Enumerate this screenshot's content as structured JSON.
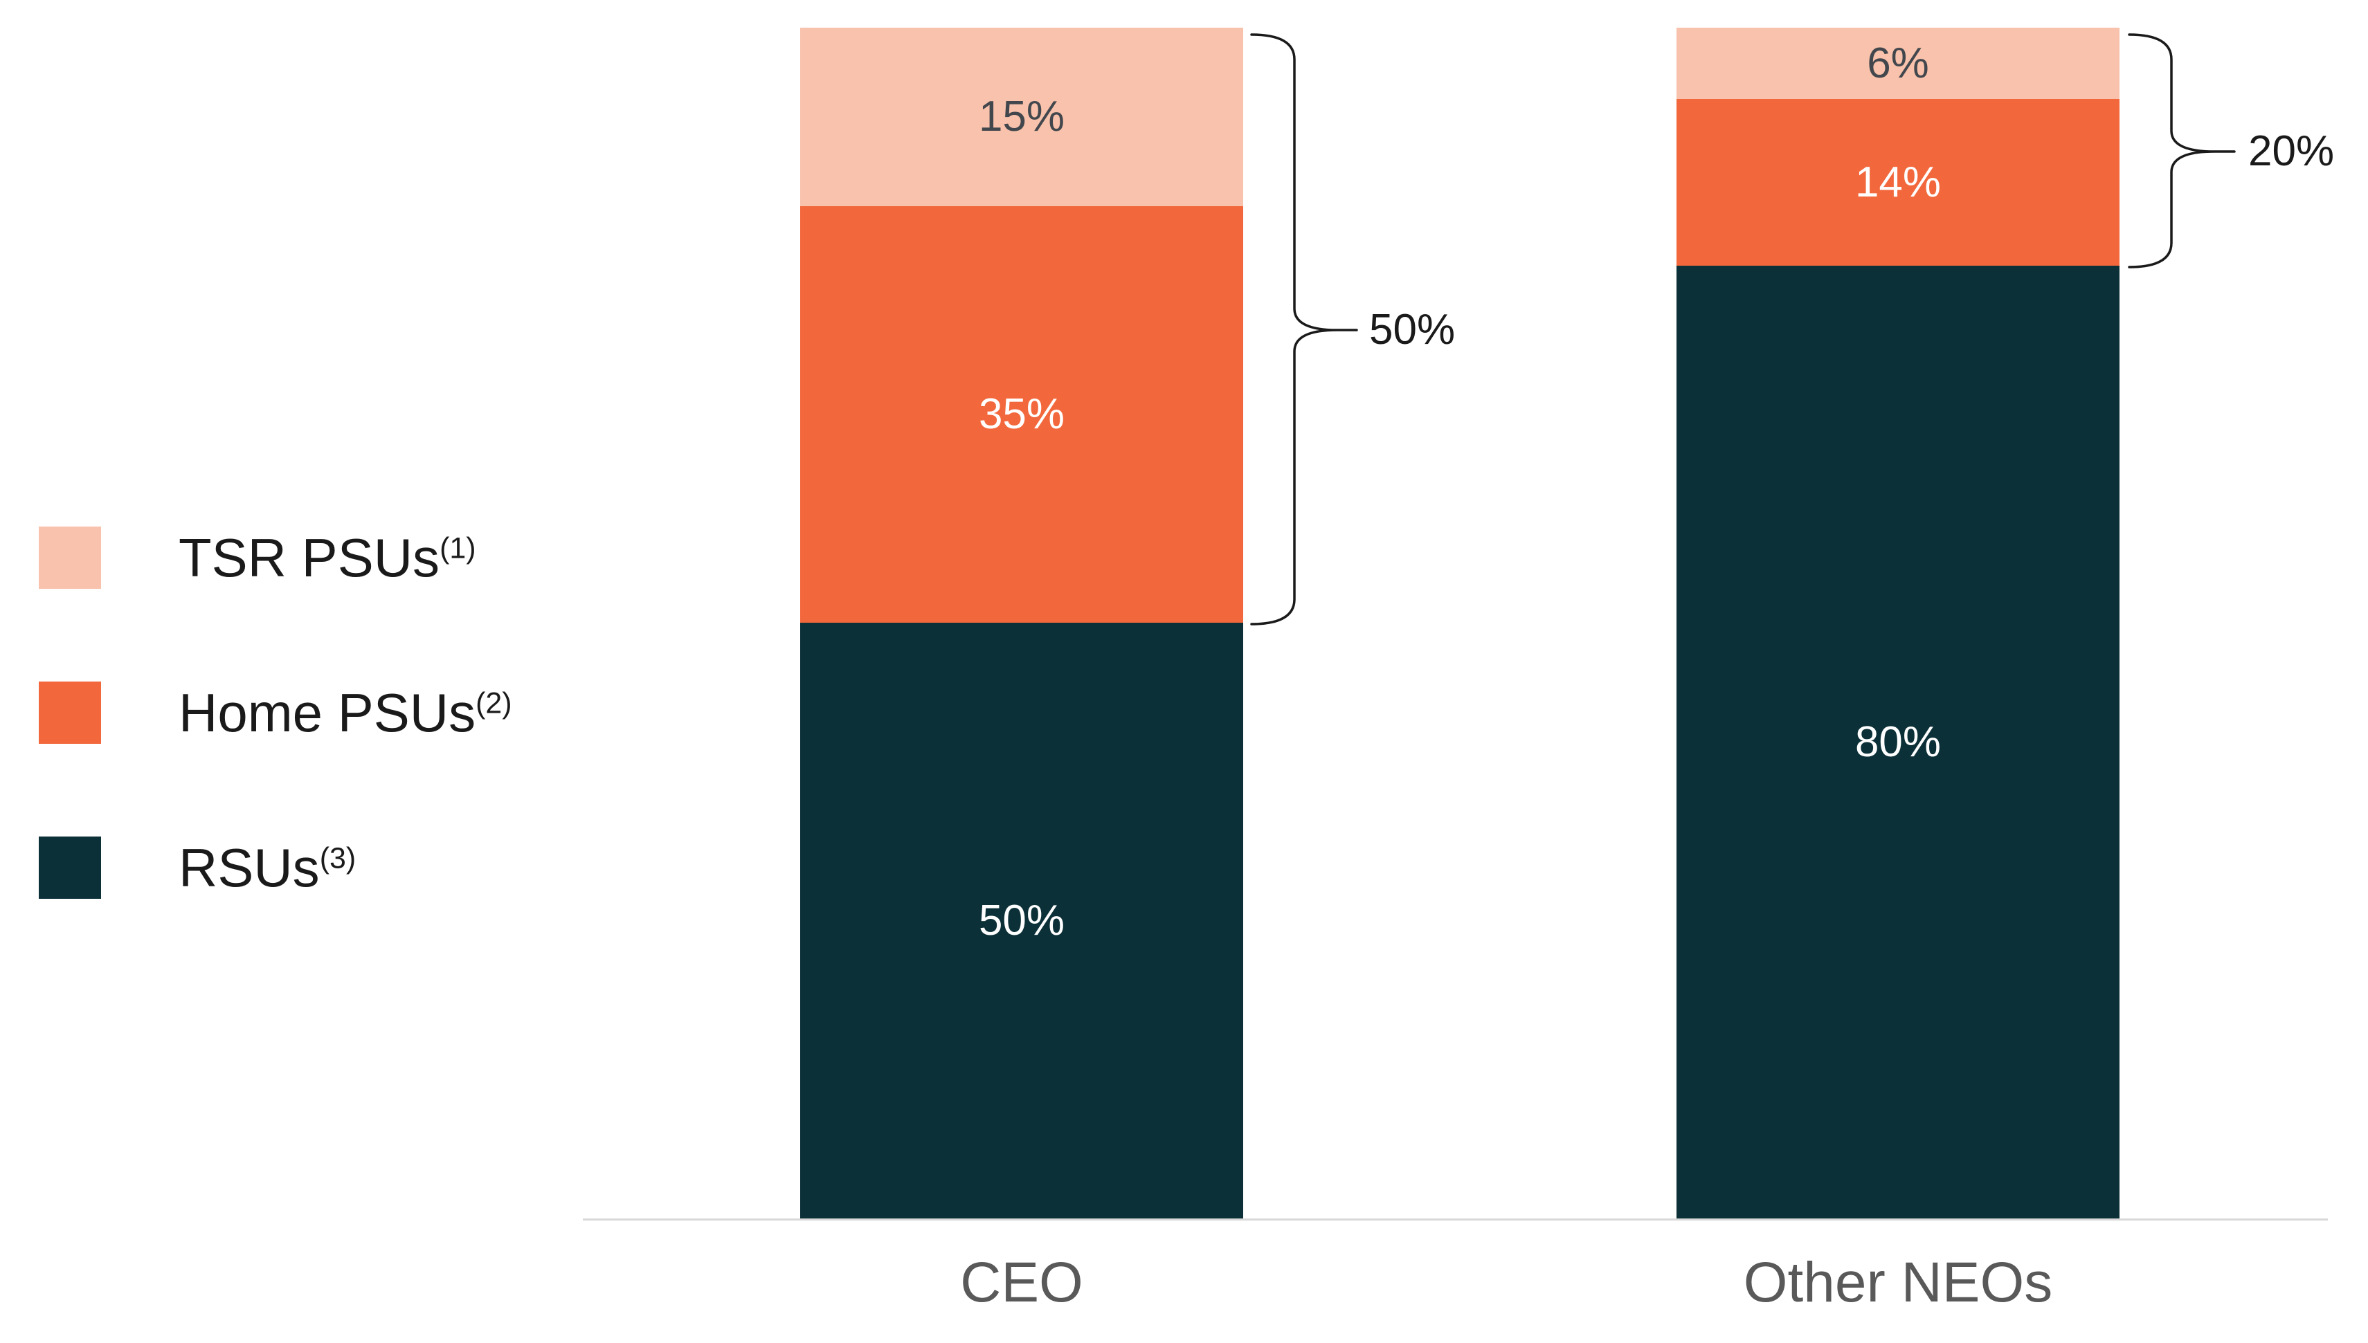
{
  "chart_data": {
    "type": "bar",
    "stacked": true,
    "orientation": "vertical",
    "stack_order": "top-to-bottom",
    "categories": [
      "CEO",
      "Other NEOs"
    ],
    "series": [
      {
        "name": "TSR PSUs",
        "superscript": "(1)",
        "color": "#f8c2ac",
        "label_color": "#42474d",
        "values": [
          15,
          6
        ]
      },
      {
        "name": "Home PSUs",
        "superscript": "(2)",
        "color": "#f2683c",
        "label_color": "#ffffff",
        "values": [
          35,
          14
        ]
      },
      {
        "name": "RSUs",
        "superscript": "(3)",
        "color": "#0c3038",
        "label_color": "#ffffff",
        "values": [
          50,
          80
        ]
      }
    ],
    "value_suffix": "%",
    "ylim": [
      0,
      100
    ],
    "grid": false,
    "legend_position": "left",
    "axis_line_color": "#d8d8d8",
    "category_label_color": "#595959",
    "annotations": [
      {
        "target": "CEO",
        "label": "50%",
        "covers_series": [
          "TSR PSUs",
          "Home PSUs"
        ]
      },
      {
        "target": "Other NEOs",
        "label": "20%",
        "covers_series": [
          "TSR PSUs",
          "Home PSUs"
        ]
      }
    ]
  }
}
